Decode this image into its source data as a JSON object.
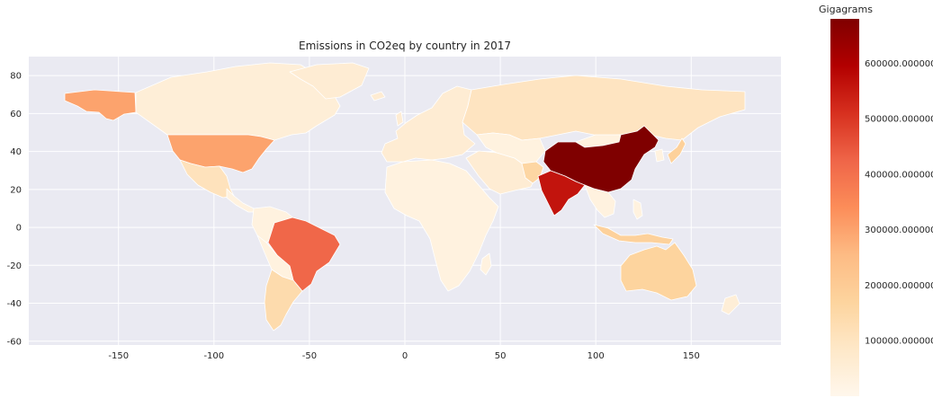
{
  "chart_data": {
    "type": "choropleth",
    "title": "Emissions in CO2eq by country in 2017",
    "xlabel": "",
    "ylabel": "",
    "xlim": [
      -197,
      197
    ],
    "ylim": [
      -62,
      90
    ],
    "x_ticks": [
      -150,
      -100,
      -50,
      0,
      50,
      100,
      150
    ],
    "y_ticks": [
      -60,
      -40,
      -20,
      0,
      20,
      40,
      60,
      80
    ],
    "grid": true,
    "background": "#eaeaf2",
    "colorbar": {
      "title": "Gigagrams",
      "colormap": "OrRd",
      "min": 0,
      "max": 680000,
      "ticks": [
        100000,
        200000,
        300000,
        400000,
        500000,
        600000
      ],
      "tick_labels": [
        "100000.000000",
        "200000.000000",
        "300000.000000",
        "400000.000000",
        "500000.000000",
        "600000.000000"
      ],
      "colors": [
        "#fff7ec",
        "#fee8c8",
        "#fdd49e",
        "#fdbb84",
        "#fc8d59",
        "#ef6548",
        "#d7301f",
        "#b30000",
        "#7f0000"
      ]
    },
    "regions": [
      {
        "name": "China",
        "value": 680000
      },
      {
        "name": "United States",
        "value": 300000
      },
      {
        "name": "Brazil",
        "value": 420000
      },
      {
        "name": "India",
        "value": 560000
      },
      {
        "name": "Russia",
        "value": 100000
      },
      {
        "name": "Australia",
        "value": 170000
      },
      {
        "name": "Canada",
        "value": 50000
      },
      {
        "name": "Argentina",
        "value": 140000
      },
      {
        "name": "Indonesia",
        "value": 180000
      },
      {
        "name": "Mexico",
        "value": 110000
      },
      {
        "name": "Pakistan",
        "value": 160000
      },
      {
        "name": "Africa (other)",
        "value": 30000
      },
      {
        "name": "Europe (other)",
        "value": 60000
      },
      {
        "name": "Kazakhstan",
        "value": 100000
      }
    ]
  }
}
